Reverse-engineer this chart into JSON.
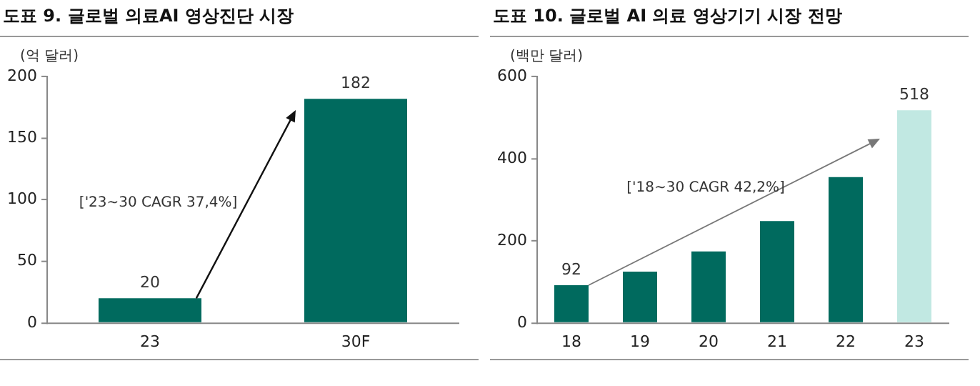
{
  "chart_data": [
    {
      "type": "bar",
      "title": "도표 9. 글로벌 의료AI 영상진단 시장",
      "ylabel": "(억 달러)",
      "categories": [
        "23",
        "30F"
      ],
      "values": [
        20,
        182
      ],
      "color": "#006a5e",
      "ylim": [
        0,
        200
      ],
      "yticks": [
        0,
        50,
        100,
        150,
        200
      ],
      "grid": false,
      "data_labels": true,
      "annotations": [
        "['23~30 CAGR 37,4%]"
      ]
    },
    {
      "type": "bar",
      "title": "도표 10. 글로벌 AI 의료 영상기기 시장 전망",
      "ylabel": "(백만 달러)",
      "categories": [
        "18",
        "19",
        "20",
        "21",
        "22",
        "23"
      ],
      "values": [
        92,
        125,
        174,
        248,
        355,
        518
      ],
      "colors": [
        "#006a5e",
        "#006a5e",
        "#006a5e",
        "#006a5e",
        "#006a5e",
        "#c1e8e2"
      ],
      "ylim": [
        0,
        600
      ],
      "yticks": [
        0,
        200,
        400,
        600
      ],
      "grid": false,
      "value_labels": [
        "92",
        null,
        null,
        null,
        null,
        "518"
      ],
      "annotations": [
        "['18~30 CAGR 42,2%]"
      ]
    }
  ]
}
